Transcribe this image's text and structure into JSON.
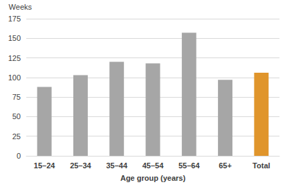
{
  "chart_data": {
    "type": "bar",
    "ylabel": "Weeks",
    "xlabel": "Age group (years)",
    "categories": [
      "15–24",
      "25–34",
      "35–44",
      "45–54",
      "55–64",
      "65+",
      "Total"
    ],
    "values": [
      88,
      103,
      120,
      118,
      157,
      97,
      106
    ],
    "colors": [
      "#a6a6a6",
      "#a6a6a6",
      "#a6a6a6",
      "#a6a6a6",
      "#a6a6a6",
      "#a6a6a6",
      "#e0952b"
    ],
    "ylim": [
      0,
      175
    ],
    "yticks": [
      0,
      25,
      50,
      75,
      100,
      125,
      150,
      175
    ],
    "grid": true
  }
}
